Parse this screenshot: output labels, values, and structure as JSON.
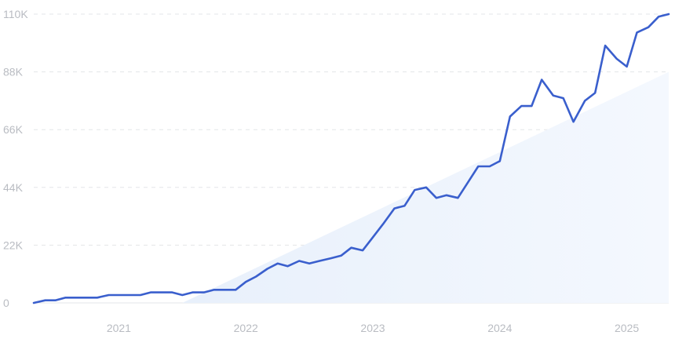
{
  "chart_data": {
    "type": "line",
    "title": "",
    "xlabel": "",
    "ylabel": "",
    "x_tick_labels": [
      "2021",
      "2022",
      "2023",
      "2024",
      "2025"
    ],
    "x_tick_positions": [
      2021.0,
      2022.0,
      2023.0,
      2024.0,
      2025.0
    ],
    "y_tick_labels": [
      "0",
      "22K",
      "44K",
      "66K",
      "88K",
      "110K"
    ],
    "y_tick_values": [
      0,
      22000,
      44000,
      66000,
      88000,
      110000
    ],
    "xlim": [
      2020.33,
      2025.33
    ],
    "ylim": [
      0,
      110000
    ],
    "grid": true,
    "colors": {
      "line": "#3a5fcd",
      "trend_fill_start": "#e8f0fb",
      "trend_fill_end": "#f4f8fe",
      "grid": "#e3e5e8",
      "tick_text": "#b9bcc2"
    },
    "series": [
      {
        "x": [
          2020.33,
          2020.42,
          2020.5,
          2020.58,
          2020.67,
          2020.75,
          2020.83,
          2020.92,
          2021.0,
          2021.08,
          2021.17,
          2021.25,
          2021.33,
          2021.42,
          2021.5,
          2021.58,
          2021.67,
          2021.75,
          2021.83,
          2021.92,
          2022.0,
          2022.08,
          2022.17,
          2022.25,
          2022.33,
          2022.42,
          2022.5,
          2022.58,
          2022.67,
          2022.75,
          2022.83,
          2022.92,
          2023.0,
          2023.08,
          2023.17,
          2023.25,
          2023.33,
          2023.42,
          2023.5,
          2023.58,
          2023.67,
          2023.75,
          2023.83,
          2023.92,
          2024.0,
          2024.08,
          2024.17,
          2024.25,
          2024.33,
          2024.42,
          2024.5,
          2024.58,
          2024.67,
          2024.75,
          2024.83,
          2024.92,
          2025.0,
          2025.08,
          2025.17,
          2025.25,
          2025.33
        ],
        "values": [
          0,
          1000,
          1000,
          2000,
          2000,
          2000,
          2000,
          3000,
          3000,
          3000,
          3000,
          4000,
          4000,
          4000,
          3000,
          4000,
          4000,
          5000,
          5000,
          5000,
          8000,
          10000,
          13000,
          15000,
          14000,
          16000,
          15000,
          16000,
          17000,
          18000,
          21000,
          20000,
          25000,
          30000,
          36000,
          37000,
          43000,
          44000,
          40000,
          41000,
          40000,
          46000,
          52000,
          52000,
          54000,
          71000,
          75000,
          75000,
          85000,
          79000,
          78000,
          69000,
          77000,
          80000,
          98000,
          93000,
          90000,
          103000,
          105000,
          109000,
          110000
        ]
      }
    ],
    "trend_area": {
      "x": [
        2021.5,
        2025.33
      ],
      "y": [
        0,
        88000
      ]
    }
  }
}
